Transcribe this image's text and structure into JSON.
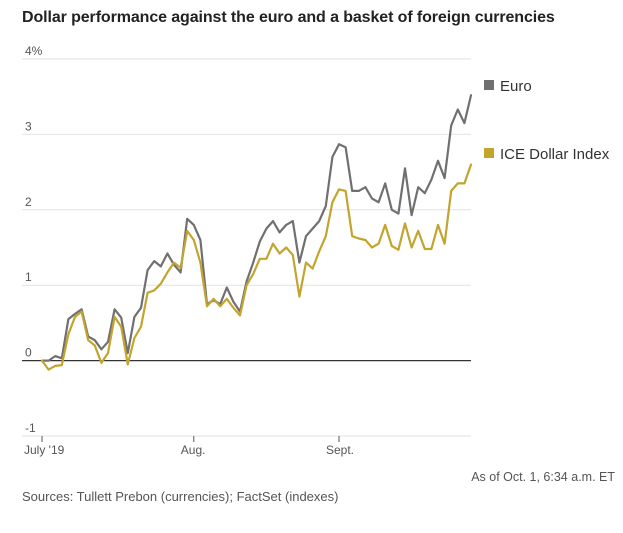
{
  "chart_data": {
    "type": "line",
    "title": "Dollar performance against the euro and a basket of foreign currencies",
    "xlabel": "",
    "ylabel": "",
    "ylim": [
      -1,
      4
    ],
    "yticks": [
      {
        "value": 4,
        "label": "4%"
      },
      {
        "value": 3,
        "label": "3"
      },
      {
        "value": 2,
        "label": "2"
      },
      {
        "value": 1,
        "label": "1"
      },
      {
        "value": 0,
        "label": "0"
      },
      {
        "value": -1,
        "label": "-1"
      }
    ],
    "xticks": [
      {
        "index": 0,
        "label": "July '19"
      },
      {
        "index": 23,
        "label": "Aug."
      },
      {
        "index": 45,
        "label": "Sept."
      }
    ],
    "x_count": 66,
    "grid": true,
    "legend_position": "right",
    "series": [
      {
        "name": "Euro",
        "color": "#707070",
        "values": [
          0.0,
          0.0,
          0.06,
          0.03,
          0.55,
          0.62,
          0.68,
          0.32,
          0.27,
          0.15,
          0.25,
          0.68,
          0.57,
          0.1,
          0.58,
          0.7,
          1.2,
          1.32,
          1.25,
          1.42,
          1.27,
          1.17,
          1.88,
          1.8,
          1.6,
          0.75,
          0.8,
          0.75,
          0.97,
          0.78,
          0.65,
          1.05,
          1.3,
          1.58,
          1.75,
          1.85,
          1.7,
          1.8,
          1.85,
          1.3,
          1.65,
          1.75,
          1.85,
          2.05,
          2.7,
          2.87,
          2.83,
          2.25,
          2.25,
          2.3,
          2.15,
          2.1,
          2.35,
          2.0,
          1.95,
          2.55,
          1.93,
          2.3,
          2.22,
          2.4,
          2.65,
          2.42,
          3.12,
          3.33,
          3.15,
          3.52
        ]
      },
      {
        "name": "ICE Dollar Index",
        "color": "#c3a42e",
        "values": [
          0.0,
          -0.12,
          -0.07,
          -0.06,
          0.35,
          0.58,
          0.65,
          0.27,
          0.2,
          -0.03,
          0.1,
          0.58,
          0.45,
          -0.05,
          0.3,
          0.45,
          0.9,
          0.93,
          1.02,
          1.17,
          1.3,
          1.23,
          1.72,
          1.6,
          1.3,
          0.72,
          0.82,
          0.72,
          0.82,
          0.7,
          0.6,
          1.0,
          1.15,
          1.35,
          1.35,
          1.55,
          1.42,
          1.5,
          1.4,
          0.85,
          1.3,
          1.22,
          1.45,
          1.65,
          2.1,
          2.27,
          2.25,
          1.65,
          1.62,
          1.6,
          1.5,
          1.55,
          1.8,
          1.52,
          1.47,
          1.82,
          1.5,
          1.72,
          1.48,
          1.48,
          1.8,
          1.55,
          2.25,
          2.35,
          2.35,
          2.6
        ]
      }
    ]
  },
  "footer": {
    "as_of": "As of Oct. 1, 6:34 a.m. ET",
    "sources": "Sources: Tullett Prebon (currencies); FactSet (indexes)"
  }
}
